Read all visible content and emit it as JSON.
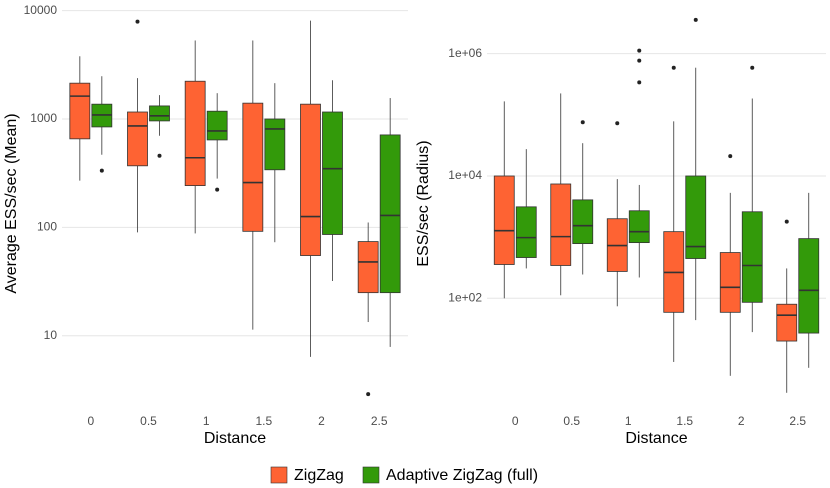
{
  "chart_data": [
    {
      "type": "box",
      "ylabel": "Average ESS/sec (Mean)",
      "xlabel": "Distance",
      "categories": [
        "0",
        "0.5",
        "1",
        "1.5",
        "2",
        "2.5"
      ],
      "log_scale": true,
      "grid": true,
      "ylim": [
        2.3,
        12000
      ],
      "yticks": [
        10,
        100,
        1000,
        10000
      ],
      "series": [
        {
          "name": "ZigZag",
          "color": "#fe6333",
          "min": [
            270,
            90,
            88,
            11.4,
            6.4,
            13.4
          ],
          "q1": [
            656,
            370,
            243,
            92,
            55,
            25
          ],
          "median": [
            1625,
            863,
            439,
            259,
            126,
            48
          ],
          "q3": [
            2140,
            1160,
            2230,
            1400,
            1370,
            74
          ],
          "max": [
            3790,
            2380,
            5300,
            5300,
            8090,
            111
          ],
          "outliers": [
            [],
            [
              7900
            ],
            [],
            [],
            [],
            [
              2.9
            ]
          ]
        },
        {
          "name": "Adaptive ZigZag (full)",
          "color": "#339a0a",
          "min": [
            468,
            700,
            282,
            73,
            32,
            7.9
          ],
          "q1": [
            845,
            960,
            641,
            340,
            86,
            25
          ],
          "median": [
            1090,
            1070,
            776,
            809,
            348,
            129
          ],
          "q3": [
            1370,
            1320,
            1180,
            1000,
            1160,
            713
          ],
          "max": [
            2480,
            1660,
            1730,
            2140,
            2280,
            1560
          ],
          "outliers": [
            [
              334
            ],
            [
              458
            ],
            [
              223
            ],
            [],
            [],
            []
          ]
        }
      ]
    },
    {
      "type": "box",
      "ylabel": "ESS/sec (Radius)",
      "xlabel": "Distance",
      "categories": [
        "0",
        "0.5",
        "1",
        "1.5",
        "2",
        "2.5"
      ],
      "log_scale": true,
      "grid": true,
      "ylim": [
        1.8,
        7000000
      ],
      "yticks": [
        {
          "value": 100,
          "label": "1e+02"
        },
        {
          "value": 10000,
          "label": "1e+04"
        },
        {
          "value": 1000000,
          "label": "1e+06"
        }
      ],
      "series": [
        {
          "name": "ZigZag",
          "color": "#fe6333",
          "min": [
            100,
            112,
            74,
            9.1,
            5.4,
            2.85
          ],
          "q1": [
            357,
            344,
            275,
            59,
            59,
            20
          ],
          "median": [
            1276,
            1020,
            728,
            265,
            151,
            53
          ],
          "q3": [
            10000,
            7400,
            2000,
            1230,
            560,
            80
          ],
          "max": [
            166000,
            224000,
            8900,
            78300,
            5300,
            308
          ],
          "outliers": [
            [],
            [],
            [
              72800
            ],
            [
              590000
            ],
            [
              21100
            ],
            [
              1790
            ]
          ]
        },
        {
          "name": "Adaptive ZigZag (full)",
          "color": "#339a0a",
          "min": [
            308,
            245,
            219,
            44,
            28,
            7.3
          ],
          "q1": [
            464,
            784,
            814,
            447,
            86,
            27
          ],
          "median": [
            982,
            1540,
            1230,
            702,
            344,
            135
          ],
          "q3": [
            3130,
            4070,
            2700,
            10000,
            2600,
            946
          ],
          "max": [
            27500,
            34400,
            7140,
            590000,
            185000,
            5300
          ],
          "outliers": [
            [],
            [
              75500
            ],
            [
              1120000,
              770000,
              340000
            ],
            [
              3570000
            ],
            [
              590000
            ],
            []
          ]
        }
      ]
    }
  ]
}
